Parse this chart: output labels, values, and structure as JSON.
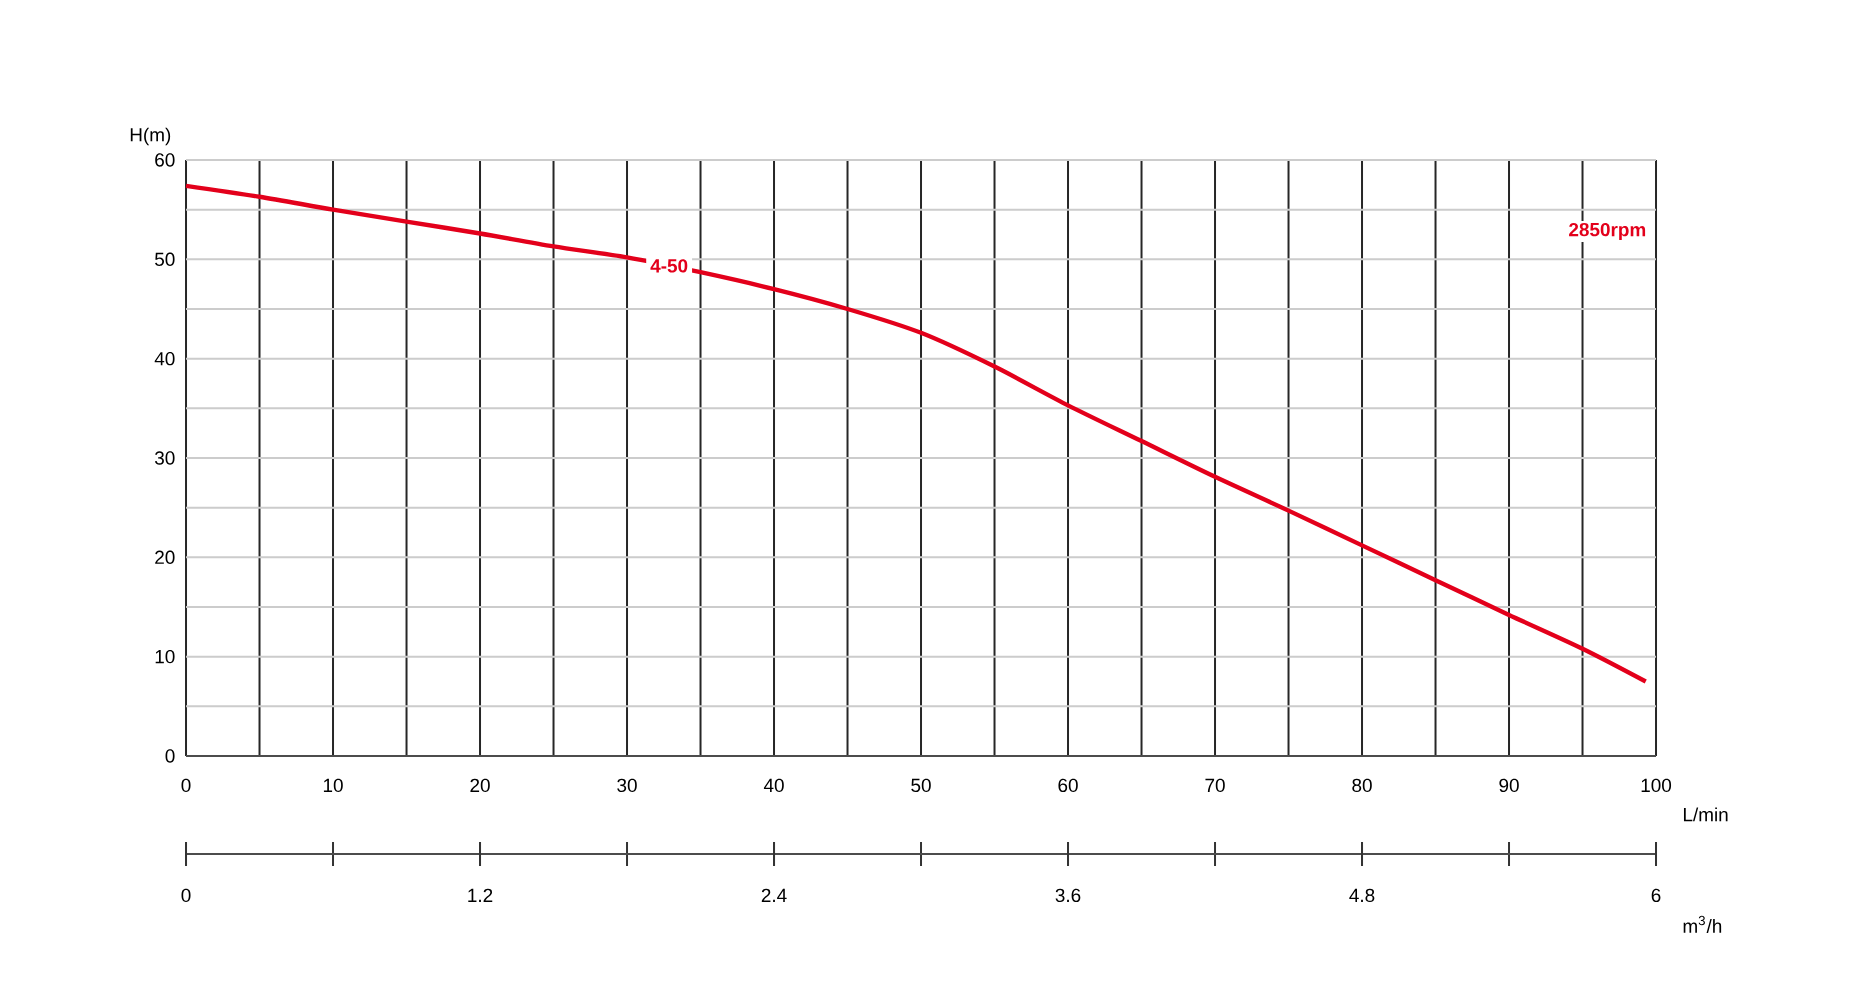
{
  "chart_data": {
    "type": "line",
    "xlabel": "L/min",
    "ylabel": "H(m)",
    "x2label": "m$^{3}$/h",
    "x": [
      0,
      5,
      10,
      15,
      20,
      25,
      30,
      35,
      40,
      45,
      50,
      55,
      60,
      65,
      70,
      75,
      80,
      85,
      90,
      95,
      99.3
    ],
    "series": [
      {
        "name": "4-50",
        "color": "#e3001b",
        "values": [
          57.4,
          56.3,
          55.0,
          53.8,
          52.6,
          51.3,
          50.2,
          48.7,
          47.0,
          45.0,
          42.6,
          39.2,
          35.3,
          31.7,
          28.1,
          24.7,
          21.2,
          17.7,
          14.2,
          10.8,
          7.5
        ]
      }
    ],
    "xlim": [
      0,
      100
    ],
    "xticks": [
      0,
      10,
      20,
      30,
      40,
      50,
      60,
      70,
      80,
      90,
      100
    ],
    "ylim": [
      0,
      60
    ],
    "yticks": [
      0,
      10,
      20,
      30,
      40,
      50,
      60
    ],
    "x2lim": [
      0,
      6
    ],
    "x2ticks": [
      0,
      1.2,
      2.4,
      3.6,
      4.8,
      6
    ],
    "annotations": [
      "2850rpm"
    ],
    "grid": true
  }
}
